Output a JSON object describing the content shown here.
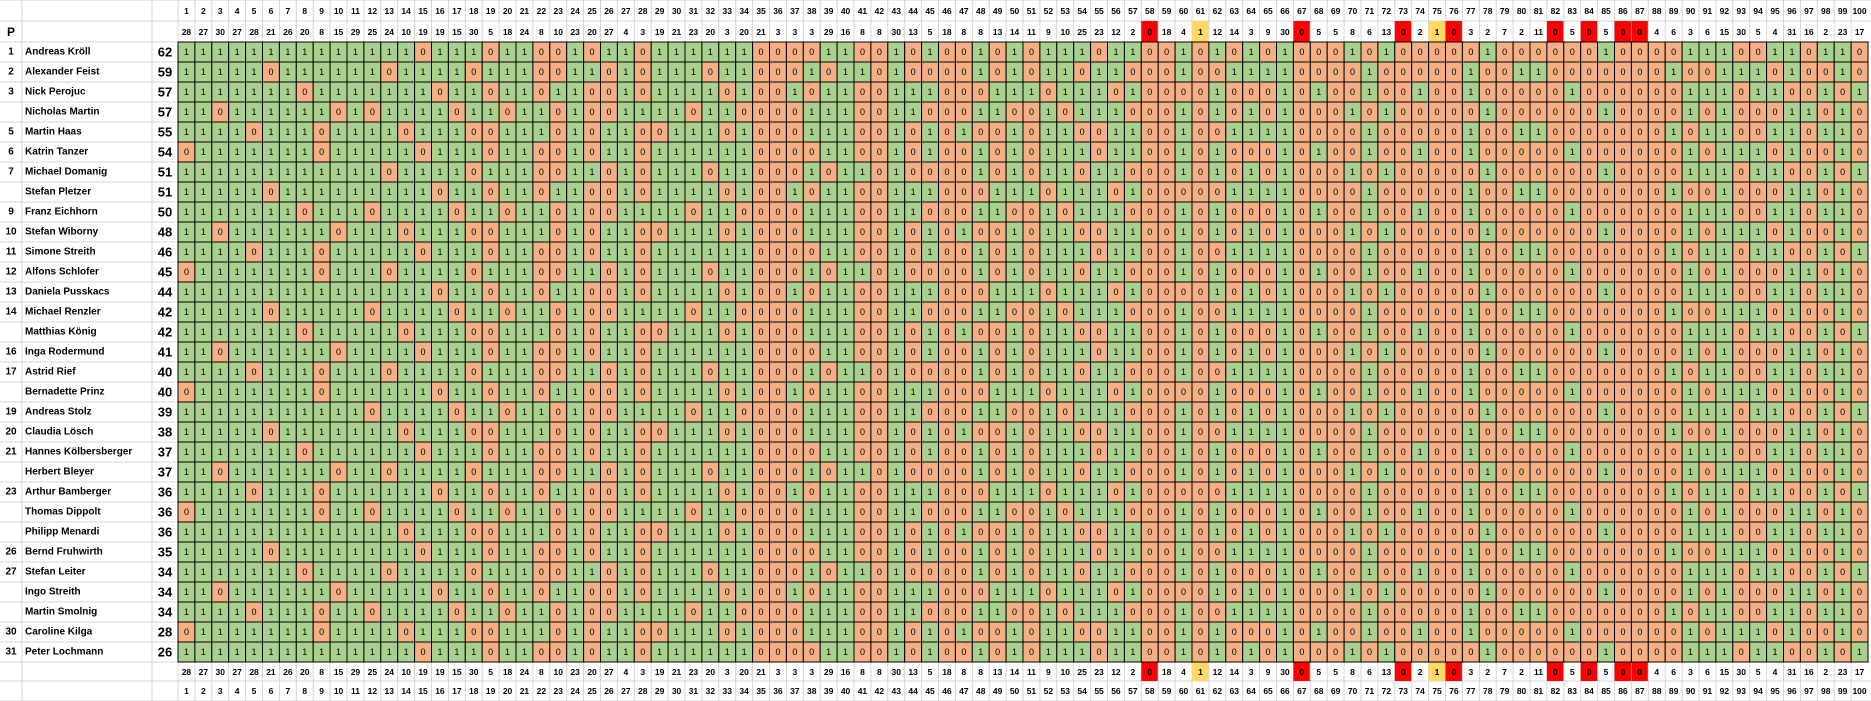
{
  "header": {
    "rank_label": "P"
  },
  "questions": [
    1,
    2,
    3,
    4,
    5,
    6,
    7,
    8,
    9,
    10,
    11,
    12,
    13,
    14,
    15,
    16,
    17,
    18,
    19,
    20,
    21,
    22,
    23,
    24,
    25,
    26,
    27,
    28,
    29,
    30,
    31,
    32,
    33,
    34,
    35,
    36,
    37,
    38,
    39,
    40,
    41,
    42,
    43,
    44,
    45,
    46,
    47,
    48,
    49,
    50,
    51,
    52,
    53,
    54,
    55,
    56,
    57,
    58,
    59,
    60,
    61,
    62,
    63,
    64,
    65,
    66,
    67,
    68,
    69,
    70,
    71,
    72,
    73,
    74,
    75,
    76,
    77,
    78,
    79,
    80,
    81,
    82,
    83,
    84,
    85,
    86,
    87,
    88,
    89,
    90,
    91,
    92,
    93,
    94,
    95,
    96,
    97,
    98,
    99,
    100
  ],
  "counts": [
    28,
    27,
    30,
    27,
    28,
    21,
    26,
    20,
    8,
    15,
    29,
    25,
    24,
    10,
    19,
    19,
    15,
    30,
    5,
    18,
    24,
    8,
    10,
    23,
    20,
    27,
    4,
    3,
    19,
    21,
    23,
    20,
    3,
    20,
    21,
    3,
    3,
    3,
    29,
    16,
    8,
    8,
    30,
    13,
    5,
    18,
    8,
    8,
    13,
    14,
    11,
    9,
    10,
    25,
    23,
    12,
    2,
    0,
    18,
    4,
    1,
    12,
    14,
    3,
    9,
    30,
    0,
    5,
    5,
    8,
    6,
    13,
    0,
    2,
    1,
    0,
    3,
    2,
    7,
    2,
    11,
    0,
    5,
    0,
    5,
    0,
    0,
    4,
    6,
    3,
    6,
    15,
    30,
    5,
    4,
    31,
    16,
    2,
    23,
    17
  ],
  "players": [
    {
      "rank": 1,
      "name": "Andreas Kröll",
      "score": 62,
      "answers": "1111111111111101110110010110111111000011001010010101110110010101010001010000010000001000011100110110"
    },
    {
      "rank": 2,
      "name": "Alexander Feist",
      "score": 59,
      "answers": "1111101111110111101110011010111011000101101000010101101100010011110000100000100110000000100111010010"
    },
    {
      "rank": 3,
      "name": "Nick Perojuc",
      "score": 57,
      "answers": "1111111011111110110110110010111101001011001110001110111010000100010100100100100000100000011101100101"
    },
    {
      "rank": null,
      "name": "Nicholas Martin",
      "score": 57,
      "answers": "1101111110101111011011010011110110000111001100011001011100010101010001010000010000001000010100011010"
    },
    {
      "rank": 5,
      "name": "Martin Haas",
      "score": 55,
      "answers": "1111011101111011100111010110011101000111001010100101100110010011110000100000100110000000101100110110"
    },
    {
      "rank": 6,
      "name": "Katrin Tanzer",
      "score": 54,
      "answers": "0111111101111101110110010110111111000011001010010101110110010100010100100100100000100000010111010010"
    },
    {
      "rank": 7,
      "name": "Michael Domanig",
      "score": 51,
      "answers": "1111111111110111101110011010111011000101101000010101101100010101010001010000010000001000011101100101"
    },
    {
      "rank": null,
      "name": "Stefan Pletzer",
      "score": 51,
      "answers": "1111101111111110110110110010111101001011001110001110111010000011110000100000100110000000100100011010"
    },
    {
      "rank": 9,
      "name": "Franz Eichhorn",
      "score": 50,
      "answers": "1111111011101111011011010011110110000111001100011001011100010100010100100100100000100000011100110110"
    },
    {
      "rank": 10,
      "name": "Stefan Wiborny",
      "score": 48,
      "answers": "1101111110111011100111010110011101000111001010100101100110010101010001010000010000001000010111010010"
    },
    {
      "rank": 11,
      "name": "Simone Streith",
      "score": 46,
      "answers": "1111011101111101110110010110111111000011001010010101110110010011110000100000100110000000101101100101"
    },
    {
      "rank": 12,
      "name": "Alfons Schlofer",
      "score": 45,
      "answers": "0111111101110111101110011010111011000101101000010101101100010100010100100100100000100000010100011010"
    },
    {
      "rank": 13,
      "name": "Daniela Pusskacs",
      "score": 44,
      "answers": "1111111111111110110110110010111101001011001110001110111010000101010001010000010000001000011100110110"
    },
    {
      "rank": 14,
      "name": "Michael Renzler",
      "score": 42,
      "answers": "1111101111101111011011010011110110000111001100011001011100010011110000100000100110000000100111010010"
    },
    {
      "rank": null,
      "name": "Matthias König",
      "score": 42,
      "answers": "1111111011111011100111010110011101000111001010100101100110010100010100100100100000100000011101100101"
    },
    {
      "rank": 16,
      "name": "Inga Rodermund",
      "score": 41,
      "answers": "1101111110111101110110010110111111000011001010010101110110010101010001010000010000001000010100011010"
    },
    {
      "rank": 17,
      "name": "Astrid Rief",
      "score": 40,
      "answers": "1111011101110111101110011010111011000101101000010101101100010011110000100000100110000000101100110110"
    },
    {
      "rank": null,
      "name": "Bernadette Prinz",
      "score": 40,
      "answers": "0111111101111110110110110010111101001011001110001110111010000100010100100100100000100000010111010010"
    },
    {
      "rank": 19,
      "name": "Andreas Stolz",
      "score": 39,
      "answers": "1111111111101111011011010011110110000111001100011001011100010101010001010000010000001000011101100101"
    },
    {
      "rank": 20,
      "name": "Claudia Lösch",
      "score": 38,
      "answers": "1111101111111011100111010110011101000111001010100101100110010011110000100000100110000000100100011010"
    },
    {
      "rank": 21,
      "name": "Hannes Kölbersberger",
      "score": 37,
      "answers": "1111111011111101110110010110111111000011001010010101110110010100010100100100100000100000011100110110"
    },
    {
      "rank": null,
      "name": "Herbert Bleyer",
      "score": 37,
      "answers": "1101111110110111101110011010111011000101101000010101101100010101010001010000010000001000010111010010"
    },
    {
      "rank": 23,
      "name": "Arthur Bamberger",
      "score": 36,
      "answers": "1111011101111110110110110010111101001011001110001110111010000011110000100000100110000000101101100101"
    },
    {
      "rank": null,
      "name": "Thomas Dippolt",
      "score": 36,
      "answers": "0111111101101111011011010011110110000111001100011001011100010100010100100100100000100000010100011010"
    },
    {
      "rank": null,
      "name": "Philipp Menardi",
      "score": 36,
      "answers": "1111111111111011100111010110011101000111001010100101100110010101010001010000010000001000011100110110"
    },
    {
      "rank": 26,
      "name": "Bernd Fruhwirth",
      "score": 35,
      "answers": "1111101111111101110110010110111111000011001010010101110110010011110000100000100110000000100111010010"
    },
    {
      "rank": 27,
      "name": "Stefan Leiter",
      "score": 34,
      "answers": "1111111011110111101110011010111011000101101000010101101100010100010100100100100000100000011101100101"
    },
    {
      "rank": null,
      "name": "Ingo Streith",
      "score": 34,
      "answers": "1101111110111110110110110010111101001011001110001110111010000101010001010000010000001000010100011010"
    },
    {
      "rank": null,
      "name": "Martin Smolnig",
      "score": 34,
      "answers": "1111011101101111011011010011110110000111001100011001011100010011110000100000100110000000101100110110"
    },
    {
      "rank": 30,
      "name": "Caroline Kilga",
      "score": 28,
      "answers": "0111111101111011100111010110011101000111001010100101100110010100010100100100100000100000010111010010"
    },
    {
      "rank": 31,
      "name": "Peter Lochmann",
      "score": 26,
      "answers": "1111111111111101110110010110111111000011001010010101110110010101010001010000010000001000011101100101"
    }
  ]
}
